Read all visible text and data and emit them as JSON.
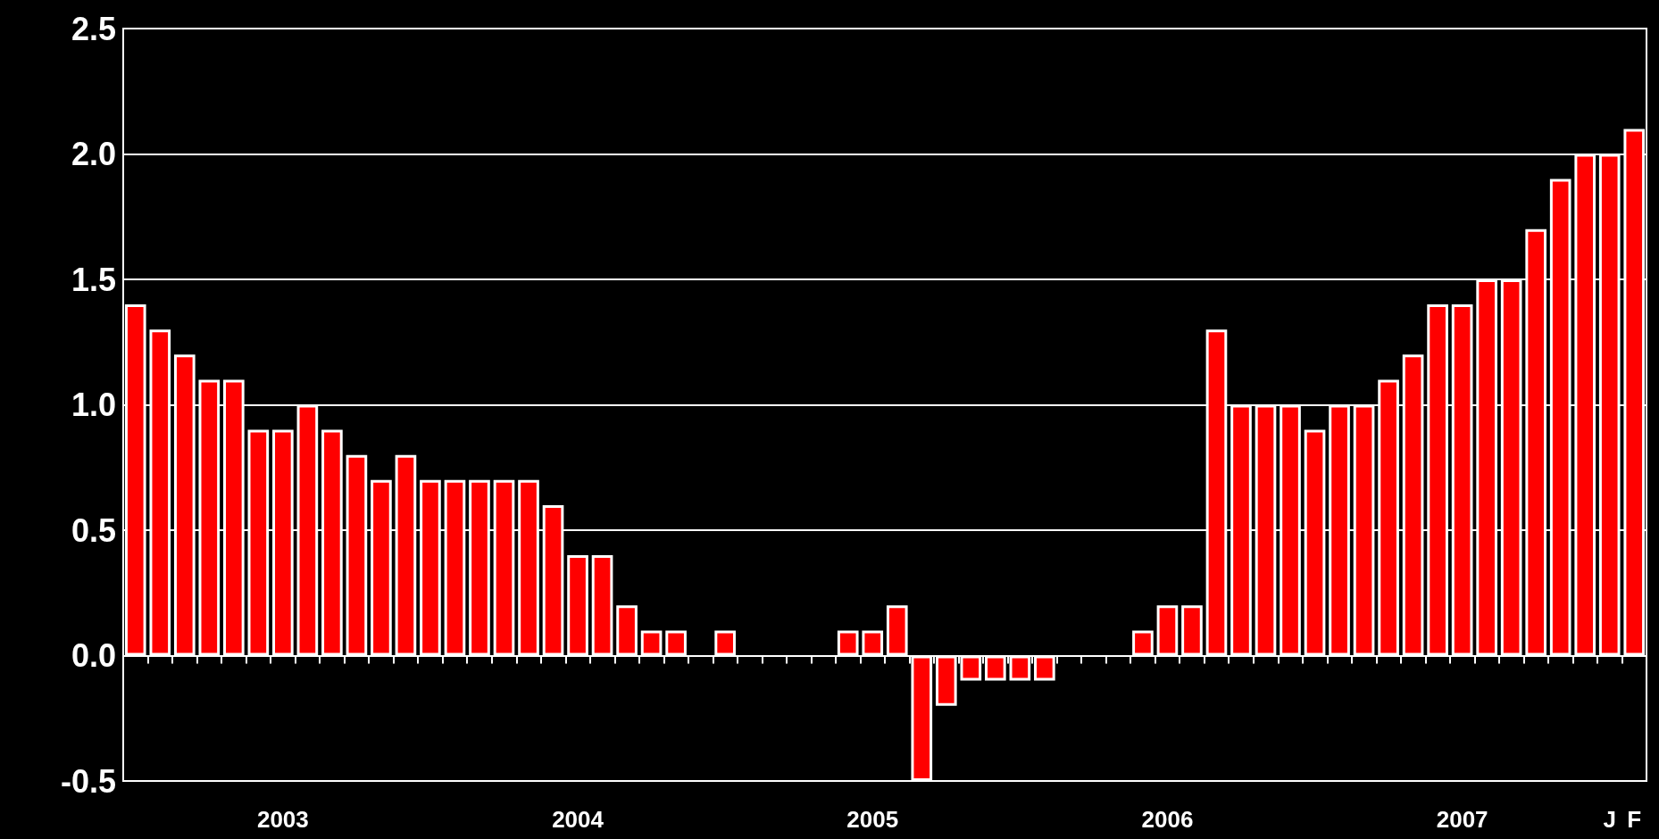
{
  "chart_data": {
    "type": "bar",
    "categories": [
      null,
      null,
      null,
      null,
      null,
      null,
      "2003",
      null,
      null,
      null,
      null,
      null,
      null,
      null,
      null,
      null,
      null,
      null,
      "2004",
      null,
      null,
      null,
      null,
      null,
      null,
      null,
      null,
      null,
      null,
      null,
      "2005",
      null,
      null,
      null,
      null,
      null,
      null,
      null,
      null,
      null,
      null,
      null,
      "2006",
      null,
      null,
      null,
      null,
      null,
      null,
      null,
      null,
      null,
      null,
      null,
      "2007",
      null,
      null,
      null,
      null,
      null,
      "J",
      "F"
    ],
    "values": [
      1.4,
      1.3,
      1.2,
      1.1,
      1.1,
      0.9,
      0.9,
      1.0,
      0.9,
      0.8,
      0.7,
      0.8,
      0.7,
      0.7,
      0.7,
      0.7,
      0.7,
      0.6,
      0.4,
      0.4,
      0.2,
      0.1,
      0.1,
      0.0,
      0.1,
      0.0,
      0.0,
      0.0,
      0.0,
      0.1,
      0.1,
      0.2,
      -0.5,
      -0.2,
      -0.1,
      -0.1,
      -0.1,
      -0.1,
      0.0,
      0.0,
      0.0,
      0.1,
      0.2,
      0.2,
      1.3,
      1.0,
      1.0,
      1.0,
      0.9,
      1.0,
      1.0,
      1.1,
      1.2,
      1.4,
      1.4,
      1.5,
      1.5,
      1.7,
      1.9,
      2.0,
      2.0,
      2.1
    ],
    "color": "#ff0000",
    "ylim": [
      -0.5,
      2.5
    ],
    "yticks": [
      {
        "value": -0.5,
        "label": "-0.5"
      },
      {
        "value": 0,
        "label": "0.0"
      },
      {
        "value": 0.5,
        "label": "0.5"
      },
      {
        "value": 1,
        "label": "1.0"
      },
      {
        "value": 1.5,
        "label": "1.5"
      },
      {
        "value": 2,
        "label": "2.0"
      },
      {
        "value": 2.5,
        "label": "2.5"
      }
    ],
    "grid": "y"
  }
}
